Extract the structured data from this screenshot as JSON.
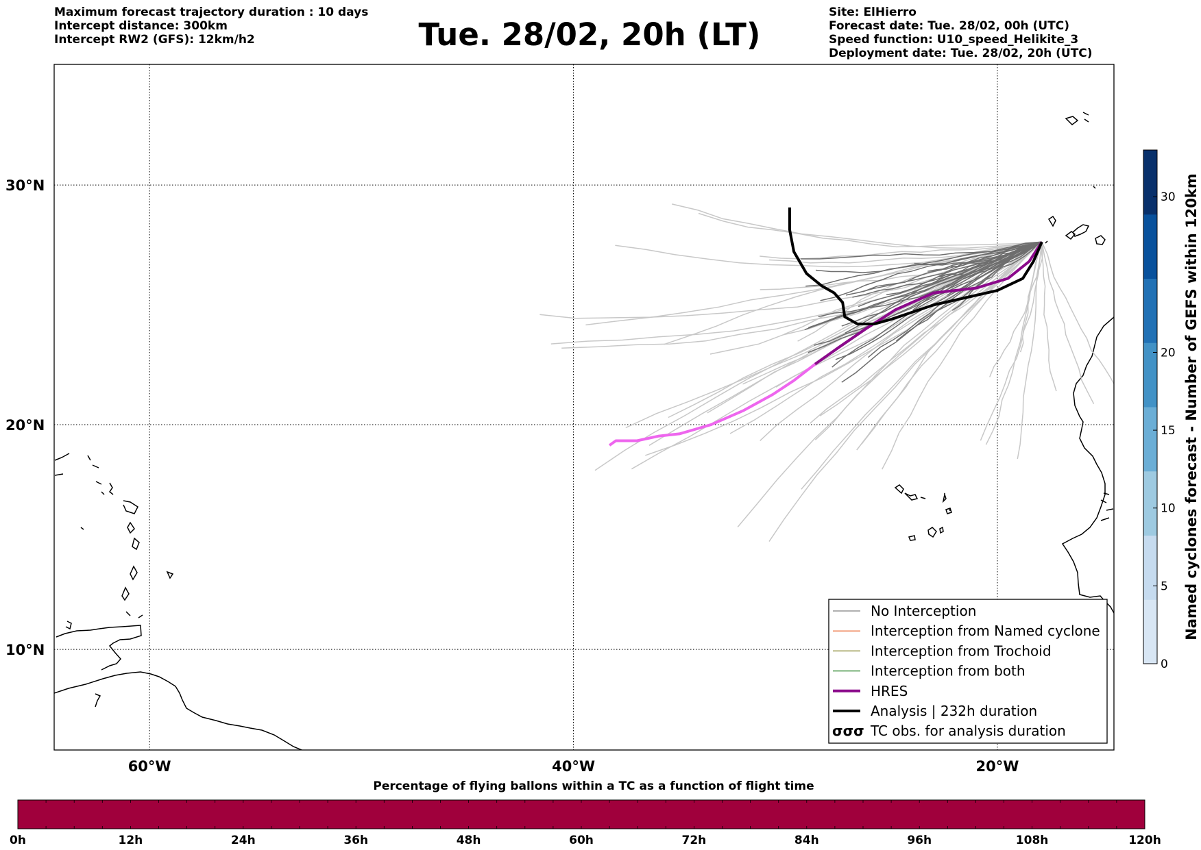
{
  "header_left": {
    "line1": "Maximum forecast trajectory duration : 10 days",
    "line2": "Intercept distance: 300km",
    "line3": "Intercept RW2 (GFS):  12km/h2"
  },
  "title": "Tue. 28/02, 20h (LT)",
  "header_right": {
    "line1": "Site: ElHierro",
    "line2": "Forecast date: Tue. 28/02, 00h (UTC)",
    "line3": "Speed function: U10_speed_Helikite_3",
    "line4": "Deployment date: Tue. 28/02, 20h (UTC)"
  },
  "map": {
    "lon_range": [
      -64.5,
      -14.5
    ],
    "lat_range": [
      5.4,
      34.7
    ],
    "lat_ticks": [
      {
        "value": 30,
        "label": "30°N"
      },
      {
        "value": 20,
        "label": "20°N"
      },
      {
        "value": 10,
        "label": "10°N"
      }
    ],
    "lon_ticks": [
      {
        "value": -60,
        "label": "60°W"
      },
      {
        "value": -40,
        "label": "40°W"
      },
      {
        "value": -20,
        "label": "20°W"
      }
    ],
    "grid": "dotted"
  },
  "legend": {
    "items": [
      {
        "label": "No Interception",
        "color": "#808080",
        "style": "thin"
      },
      {
        "label": "Interception from Named cyclone",
        "color": "#e8561c",
        "style": "thin"
      },
      {
        "label": "Interception from Trochoid",
        "color": "#7a7a1a",
        "style": "thin"
      },
      {
        "label": "Interception from both",
        "color": "#1a7a1a",
        "style": "thin"
      },
      {
        "label": "HRES",
        "color": "#8b0a8b",
        "style": "thick"
      },
      {
        "label": "Analysis | 232h duration",
        "color": "#000000",
        "style": "thick"
      },
      {
        "label": "TC obs. for analysis duration",
        "color": "#000000",
        "style": "symbol",
        "symbol": "σσσ"
      }
    ]
  },
  "colorbar_right": {
    "label": "Named cyclones forecast - Number of GEFS within 120km",
    "ticks": [
      "0",
      "5",
      "10",
      "15",
      "20",
      "30"
    ],
    "tick_values": [
      0,
      5,
      10,
      15,
      20,
      30
    ],
    "max": 33,
    "colors": [
      "#d8e6f4",
      "#c6dbef",
      "#9ecae1",
      "#6baed6",
      "#4292c6",
      "#2171b5",
      "#08519c",
      "#08306b"
    ]
  },
  "timebar": {
    "title": "Percentage of flying ballons within a TC as a function of flight time",
    "color": "#a0003c",
    "ticks": [
      "0h",
      "12h",
      "24h",
      "36h",
      "48h",
      "60h",
      "72h",
      "84h",
      "96h",
      "108h",
      "120h"
    ]
  },
  "chart_data": {
    "type": "line",
    "x_axis": "longitude (degrees east)",
    "y_axis": "latitude (degrees north)",
    "origin": [
      -17.9,
      27.7
    ],
    "series": [
      {
        "name": "HRES",
        "color": "#8b0a8b",
        "points": [
          [
            -17.9,
            27.7
          ],
          [
            -18.5,
            26.9
          ],
          [
            -19.5,
            26.2
          ],
          [
            -21,
            25.8
          ],
          [
            -23,
            25.6
          ],
          [
            -24.8,
            24.9
          ],
          [
            -26.2,
            24.1
          ],
          [
            -27.5,
            23.3
          ],
          [
            -28.6,
            22.6
          ],
          [
            -29.6,
            21.9
          ],
          [
            -30.6,
            21.3
          ],
          [
            -32,
            20.6
          ],
          [
            -33.5,
            20.0
          ],
          [
            -35,
            19.6
          ],
          [
            -36,
            19.5
          ],
          [
            -37,
            19.3
          ],
          [
            -38,
            19.3
          ],
          [
            -38.3,
            19.1
          ]
        ]
      },
      {
        "name": "Analysis | 232h duration",
        "color": "#000000",
        "points": [
          [
            -17.9,
            27.7
          ],
          [
            -18.3,
            26.9
          ],
          [
            -18.8,
            26.2
          ],
          [
            -20,
            25.7
          ],
          [
            -21.5,
            25.4
          ],
          [
            -23,
            25.1
          ],
          [
            -24,
            24.8
          ],
          [
            -25,
            24.5
          ],
          [
            -25.8,
            24.3
          ],
          [
            -26.6,
            24.3
          ],
          [
            -27.2,
            24.6
          ],
          [
            -27.3,
            25.2
          ],
          [
            -27.7,
            25.6
          ],
          [
            -28.3,
            25.9
          ],
          [
            -29,
            26.4
          ],
          [
            -29.6,
            27.3
          ],
          [
            -29.8,
            28.2
          ],
          [
            -29.8,
            29.1
          ]
        ]
      }
    ]
  }
}
